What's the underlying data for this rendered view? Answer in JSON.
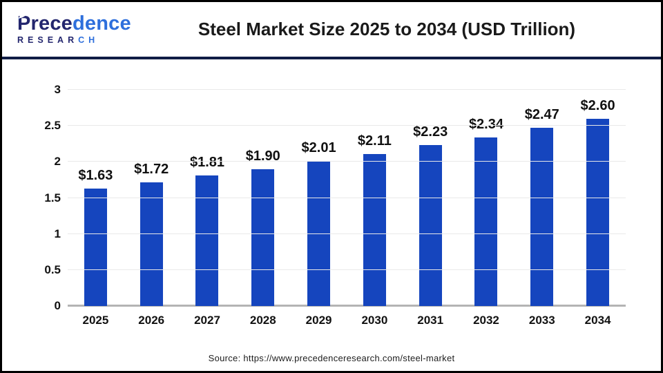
{
  "header": {
    "logo": {
      "line1_dark": "Prece",
      "line1_blue": "dence",
      "line2_dark": "RESEAR",
      "line2_blue": "CH",
      "navy_color": "#23266e",
      "blue_color": "#2e6fdc"
    },
    "title": "Steel Market Size 2025 to 2034 (USD Trillion)"
  },
  "chart_data": {
    "type": "bar",
    "title": "Steel Market Size 2025 to 2034 (USD Trillion)",
    "categories": [
      "2025",
      "2026",
      "2027",
      "2028",
      "2029",
      "2030",
      "2031",
      "2032",
      "2033",
      "2034"
    ],
    "values": [
      1.63,
      1.72,
      1.81,
      1.9,
      2.01,
      2.11,
      2.23,
      2.34,
      2.47,
      2.6
    ],
    "value_labels": [
      "$1.63",
      "$1.72",
      "$1.81",
      "$1.90",
      "$2.01",
      "$2.11",
      "$2.23",
      "$2.34",
      "$2.47",
      "$2.60"
    ],
    "unit": "USD Trillion",
    "xlabel": "",
    "ylabel": "",
    "ylim": [
      0,
      3
    ],
    "yticks": [
      "0",
      "0.5",
      "1",
      "1.5",
      "2",
      "2.5",
      "3"
    ],
    "grid": true,
    "legend": false,
    "bar_color": "#1545be",
    "gridline_color": "#e9e9e9",
    "axis_line_color": "#b4b4b4",
    "divider_color": "#101c45"
  },
  "footer": {
    "source": "Source: https://www.precedenceresearch.com/steel-market"
  }
}
